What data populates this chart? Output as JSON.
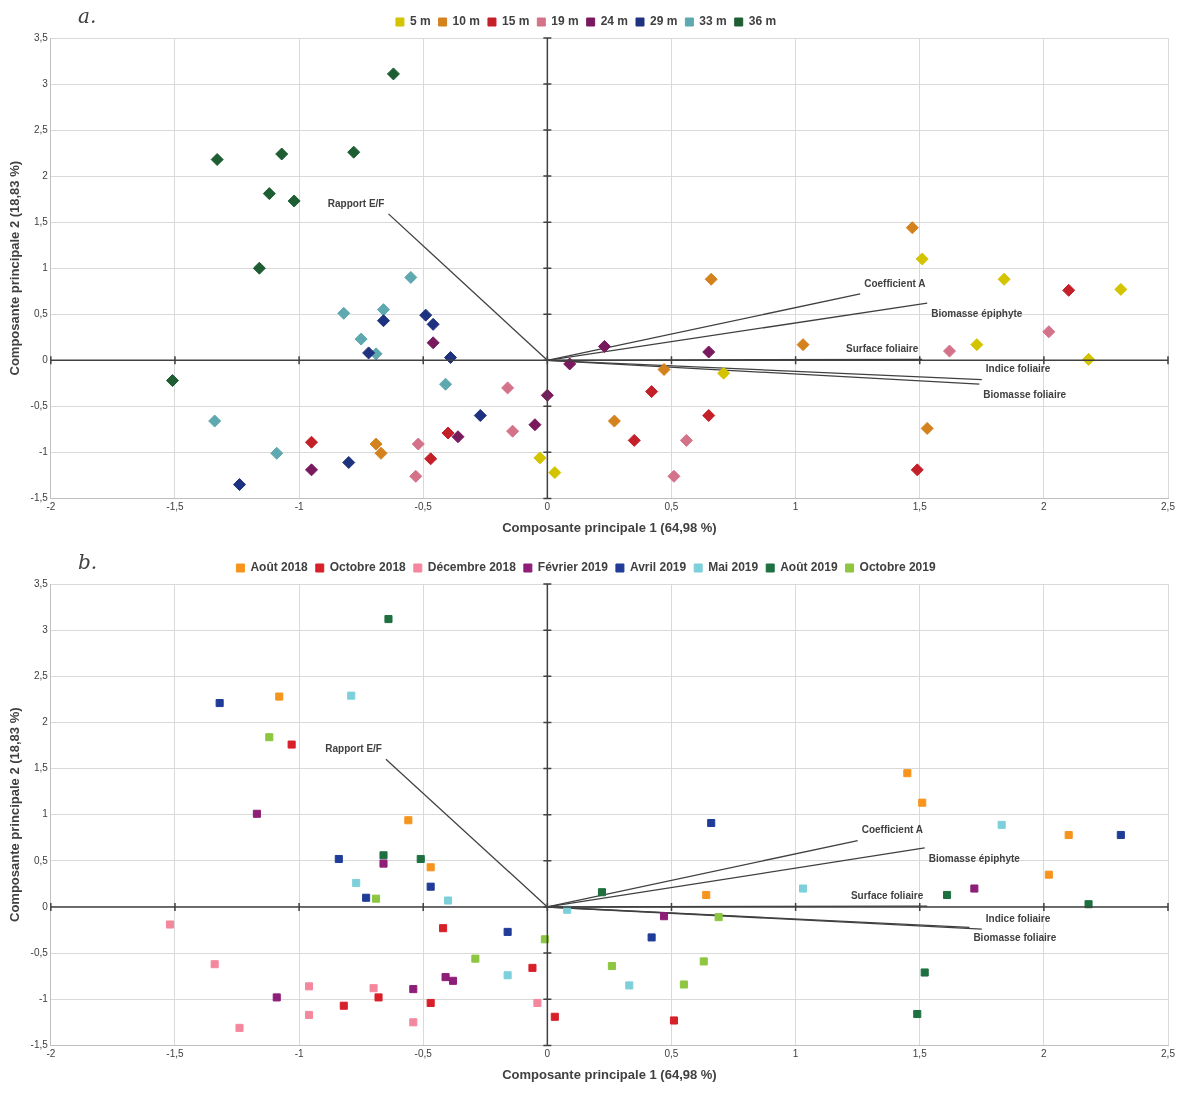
{
  "chart_data": [
    {
      "type": "scatter",
      "title": "a.",
      "xlabel": "Composante principale 1 (64,98 %)",
      "ylabel": "Composante principale 2 (18,83 %)",
      "grid": true,
      "legend": "top",
      "xlim": [
        -2,
        2.5
      ],
      "xticks": [
        -2,
        {
          "value": -1.5,
          "label": "-1,5"
        },
        -1,
        {
          "value": -0.5,
          "label": "-0,5"
        },
        0,
        {
          "value": 0.5,
          "label": "0,5"
        },
        1,
        {
          "value": 1.5,
          "label": "1,5"
        },
        2,
        {
          "value": 2.5,
          "label": "2,5"
        }
      ],
      "ylim": [
        -1.5,
        3.5
      ],
      "yticks": [
        {
          "value": -1.5,
          "label": "-1,5"
        },
        -1,
        {
          "value": -0.5,
          "label": "-0,5"
        },
        0,
        {
          "value": 0.5,
          "label": "0,5"
        },
        1,
        {
          "value": 1.5,
          "label": "1,5"
        },
        2,
        {
          "value": 2.5,
          "label": "2,5"
        },
        3,
        {
          "value": 3.5,
          "label": "3,5"
        }
      ],
      "series": [
        {
          "name": "5 m",
          "marker": "diamond",
          "color": "#d4c400",
          "x": [
            1.51,
            1.84,
            2.31,
            1.73,
            2.18,
            0.71,
            -0.03,
            0.03
          ],
          "values": [
            1.1,
            0.88,
            0.77,
            0.17,
            0.01,
            -0.14,
            -1.06,
            -1.22
          ]
        },
        {
          "name": "10 m",
          "marker": "diamond",
          "color": "#d4821e",
          "x": [
            1.47,
            0.66,
            1.03,
            0.47,
            1.53,
            0.27,
            -0.69,
            -0.67
          ],
          "values": [
            1.44,
            0.88,
            0.17,
            -0.1,
            -0.74,
            -0.66,
            -0.91,
            -1.01
          ]
        },
        {
          "name": "15 m",
          "marker": "diamond",
          "color": "#c4202a",
          "x": [
            2.1,
            0.42,
            0.65,
            0.35,
            1.49,
            -0.4,
            -0.47,
            -0.95
          ],
          "values": [
            0.76,
            -0.34,
            -0.6,
            -0.87,
            -1.19,
            -0.79,
            -1.07,
            -0.89
          ]
        },
        {
          "name": "19 m",
          "marker": "diamond",
          "color": "#d4728a",
          "x": [
            2.02,
            1.62,
            -0.16,
            -0.14,
            0.56,
            0.51,
            -0.52,
            -0.53
          ],
          "values": [
            0.31,
            0.1,
            -0.3,
            -0.77,
            -0.87,
            -1.26,
            -0.91,
            -1.26
          ]
        },
        {
          "name": "24 m",
          "marker": "diamond",
          "color": "#7a1a5e",
          "x": [
            0.23,
            0.65,
            0.09,
            0,
            -0.05,
            -0.36,
            -0.46,
            -0.95
          ],
          "values": [
            0.15,
            0.09,
            -0.04,
            -0.38,
            -0.7,
            -0.83,
            0.19,
            -1.19
          ]
        },
        {
          "name": "29 m",
          "marker": "diamond",
          "color": "#1e3280",
          "x": [
            -0.49,
            -0.46,
            -0.39,
            -0.66,
            -0.72,
            -0.27,
            -0.8,
            -1.24
          ],
          "values": [
            0.49,
            0.39,
            0.03,
            0.43,
            0.08,
            -0.6,
            -1.11,
            -1.35
          ]
        },
        {
          "name": "33 m",
          "marker": "diamond",
          "color": "#5ea8b0",
          "x": [
            -0.55,
            -0.82,
            -0.66,
            -0.75,
            -0.69,
            -0.41,
            -1.34,
            -1.09
          ],
          "values": [
            0.9,
            0.51,
            0.55,
            0.23,
            0.07,
            -0.26,
            -0.66,
            -1.01
          ]
        },
        {
          "name": "36 m",
          "marker": "diamond",
          "color": "#1e5e32",
          "x": [
            -0.62,
            -1.33,
            -1.07,
            -0.78,
            -1.12,
            -1.02,
            -1.16,
            -1.51
          ],
          "values": [
            3.11,
            2.18,
            2.24,
            2.26,
            1.81,
            1.73,
            1,
            -0.22
          ]
        },
        {
          "type": "line",
          "color": "#404040",
          "x": [
            0,
            -0.64
          ],
          "values": [
            0,
            1.59
          ]
        },
        {
          "type": "line",
          "color": "#404040",
          "x": [
            0,
            1.26
          ],
          "values": [
            0,
            0.72
          ]
        },
        {
          "type": "line",
          "color": "#404040",
          "x": [
            0,
            1.53
          ],
          "values": [
            0,
            0.62
          ]
        },
        {
          "type": "line",
          "color": "#404040",
          "x": [
            0,
            1.51
          ],
          "values": [
            0,
            0.01
          ]
        },
        {
          "type": "line",
          "color": "#404040",
          "x": [
            0,
            1.75
          ],
          "values": [
            0,
            -0.21
          ]
        },
        {
          "type": "line",
          "color": "#404040",
          "x": [
            0,
            1.74
          ],
          "values": [
            0,
            -0.26
          ]
        }
      ],
      "annotations": [
        {
          "text": "Rapport E/F",
          "x": -0.64,
          "y": 1.59
        },
        {
          "text": "Coefficient A",
          "x": 1.26,
          "y": 0.72
        },
        {
          "text": "Biomasse épiphyte",
          "x": 1.53,
          "y": 0.62
        },
        {
          "text": "Surface foliaire",
          "x": 1.51,
          "y": 0.01
        },
        {
          "text": "Indice foliaire",
          "x": 1.75,
          "y": -0.21
        },
        {
          "text": "Biomasse foliaire",
          "x": 1.74,
          "y": -0.26
        }
      ]
    },
    {
      "type": "scatter",
      "title": "b.",
      "xlabel": "Composante principale 1 (64,98 %)",
      "ylabel": "Composante principale 2 (18,83 %)",
      "grid": true,
      "legend": "top",
      "xlim": [
        -2,
        2.5
      ],
      "xticks": [
        -2,
        {
          "value": -1.5,
          "label": "-1,5"
        },
        -1,
        {
          "value": -0.5,
          "label": "-0,5"
        },
        0,
        {
          "value": 0.5,
          "label": "0,5"
        },
        1,
        {
          "value": 1.5,
          "label": "1,5"
        },
        2,
        {
          "value": 2.5,
          "label": "2,5"
        }
      ],
      "ylim": [
        -1.5,
        3.5
      ],
      "yticks": [
        {
          "value": -1.5,
          "label": "-1,5"
        },
        -1,
        {
          "value": -0.5,
          "label": "-0,5"
        },
        0,
        {
          "value": 0.5,
          "label": "0,5"
        },
        1,
        {
          "value": 1.5,
          "label": "1,5"
        },
        2,
        {
          "value": 2.5,
          "label": "2,5"
        },
        3,
        {
          "value": 3.5,
          "label": "3,5"
        }
      ],
      "series": [
        {
          "name": "Août 2018",
          "marker": "square",
          "color": "#f7941d",
          "x": [
            -1.08,
            -0.56,
            -0.47,
            1.45,
            1.51,
            2.1,
            2.02,
            0.64
          ],
          "values": [
            2.28,
            0.94,
            0.43,
            1.45,
            1.13,
            0.78,
            0.35,
            0.13
          ]
        },
        {
          "name": "Octobre 2018",
          "marker": "square",
          "color": "#d7202a",
          "x": [
            -1.03,
            -0.42,
            -0.06,
            -0.47,
            -0.68,
            -0.82,
            0.03,
            0.51
          ],
          "values": [
            1.76,
            -0.23,
            -0.66,
            -1.04,
            -0.98,
            -1.07,
            -1.19,
            -1.23
          ]
        },
        {
          "name": "Décembre 2018",
          "marker": "square",
          "color": "#f4879e",
          "x": [
            -1.52,
            -1.34,
            -0.96,
            -0.96,
            -0.7,
            -0.54,
            -1.24,
            -0.04
          ],
          "values": [
            -0.19,
            -0.62,
            -0.86,
            -1.17,
            -0.88,
            -1.25,
            -1.31,
            -1.04
          ]
        },
        {
          "name": "Février 2019",
          "marker": "square",
          "color": "#8e1e78",
          "x": [
            -1.17,
            -0.66,
            -0.54,
            -0.41,
            -0.38,
            -1.09,
            0.47,
            1.72
          ],
          "values": [
            1.01,
            0.47,
            -0.89,
            -0.76,
            -0.8,
            -0.98,
            -0.1,
            0.2
          ]
        },
        {
          "name": "Avril 2019",
          "marker": "square",
          "color": "#1f3c98",
          "x": [
            -1.32,
            -0.84,
            -0.73,
            -0.47,
            -0.16,
            0.66,
            0.42,
            2.31
          ],
          "values": [
            2.21,
            0.52,
            0.1,
            0.22,
            -0.27,
            0.91,
            -0.33,
            0.78
          ]
        },
        {
          "name": "Mai 2019",
          "marker": "square",
          "color": "#7dd0da",
          "x": [
            -0.79,
            -0.77,
            -0.4,
            -0.16,
            0.08,
            0.33,
            1.03,
            1.83
          ],
          "values": [
            2.29,
            0.26,
            0.07,
            -0.74,
            -0.03,
            -0.85,
            0.2,
            0.89
          ]
        },
        {
          "name": "Août 2019",
          "marker": "square",
          "color": "#1e7040",
          "x": [
            -0.64,
            -0.66,
            -0.51,
            0.22,
            1.61,
            2.18,
            1.52,
            1.49
          ],
          "values": [
            3.12,
            0.56,
            0.52,
            0.16,
            0.13,
            0.03,
            -0.71,
            -1.16
          ]
        },
        {
          "name": "Octobre 2019",
          "marker": "square",
          "color": "#8dc63f",
          "x": [
            -1.12,
            -0.69,
            -0.29,
            -0.01,
            0.26,
            0.55,
            0.69,
            0.63
          ],
          "values": [
            1.84,
            0.09,
            -0.56,
            -0.35,
            -0.64,
            -0.84,
            -0.11,
            -0.59
          ]
        },
        {
          "type": "line",
          "color": "#404040",
          "x": [
            0,
            -0.65
          ],
          "values": [
            0,
            1.6
          ]
        },
        {
          "type": "line",
          "color": "#404040",
          "x": [
            0,
            1.25
          ],
          "values": [
            0,
            0.72
          ]
        },
        {
          "type": "line",
          "color": "#404040",
          "x": [
            0,
            1.52
          ],
          "values": [
            0,
            0.64
          ]
        },
        {
          "type": "line",
          "color": "#404040",
          "x": [
            0,
            1.53
          ],
          "values": [
            0,
            0.01
          ]
        },
        {
          "type": "line",
          "color": "#404040",
          "x": [
            0,
            1.75
          ],
          "values": [
            0,
            -0.24
          ]
        },
        {
          "type": "line",
          "color": "#404040",
          "x": [
            0,
            1.7
          ],
          "values": [
            0,
            -0.22
          ]
        }
      ],
      "annotations": [
        {
          "text": "Rapport E/F",
          "x": -0.65,
          "y": 1.6
        },
        {
          "text": "Coefficient A",
          "x": 1.25,
          "y": 0.72
        },
        {
          "text": "Biomasse épiphyte",
          "x": 1.52,
          "y": 0.64
        },
        {
          "text": "Surface foliaire",
          "x": 1.53,
          "y": 0.01
        },
        {
          "text": "Indice foliaire",
          "x": 1.75,
          "y": -0.24
        },
        {
          "text": "Biomasse foliaire",
          "x": 1.7,
          "y": -0.22
        }
      ]
    }
  ]
}
